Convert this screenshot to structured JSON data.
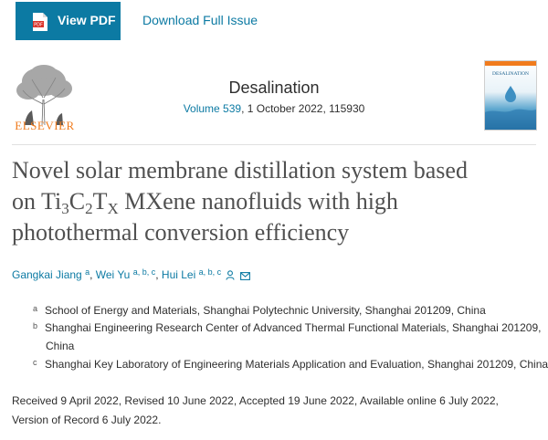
{
  "toolbar": {
    "view_pdf_label": "View PDF",
    "download_label": "Download Full Issue",
    "accent_color": "#0c7aa3"
  },
  "header": {
    "publisher": "ELSEVIER",
    "journal": "Desalination",
    "volume_link": "Volume 539",
    "issue_info": ", 1 October 2022, 115930",
    "cover_title": "DESALINATION"
  },
  "article": {
    "title_line1": "Novel solar membrane distillation system based",
    "title_line2_parts": [
      "on Ti",
      "3",
      "C",
      "2",
      "T",
      "X",
      " MXene nanofluids with high"
    ],
    "title_line3": "photothermal conversion efficiency",
    "authors": [
      {
        "name": "Gangkai Jiang",
        "sup": "a"
      },
      {
        "name": "Wei Yu",
        "sup": "a, b, c"
      },
      {
        "name": "Hui Lei",
        "sup": "a, b, c"
      }
    ],
    "author_sep": ",",
    "affiliations": [
      {
        "mark": "a",
        "text": "School of Energy and Materials, Shanghai Polytechnic University, Shanghai 201209, China"
      },
      {
        "mark": "b",
        "text": "Shanghai Engineering Research Center of Advanced Thermal Functional Materials, Shanghai 201209,",
        "cont": "China"
      },
      {
        "mark": "c",
        "text": "Shanghai Key Laboratory of Engineering Materials Application and Evaluation, Shanghai 201209, China"
      }
    ],
    "history": "Received 9 April 2022, Revised 10 June 2022, Accepted 19 June 2022, Available online 6 July 2022, Version of Record 6 July 2022."
  }
}
